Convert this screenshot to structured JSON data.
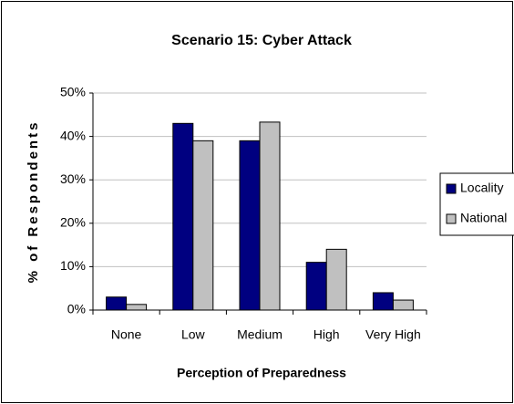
{
  "chart_data": {
    "type": "bar",
    "title": "Scenario 15: Cyber Attack",
    "x_label": "Perception of Preparedness",
    "y_label": "% of Respondents",
    "categories": [
      "None",
      "Low",
      "Medium",
      "High",
      "Very High"
    ],
    "series": [
      {
        "name": "Locality",
        "color": "#000080",
        "values": [
          3,
          43,
          39,
          11,
          4
        ]
      },
      {
        "name": "National",
        "color": "#c0c0c0",
        "values": [
          1.3,
          39,
          43.3,
          14,
          2.3
        ]
      }
    ],
    "ylim": [
      0,
      50
    ],
    "yticks": [
      {
        "value": 0,
        "label": "0%"
      },
      {
        "value": 10,
        "label": "10%"
      },
      {
        "value": 20,
        "label": "20%"
      },
      {
        "value": 30,
        "label": "30%"
      },
      {
        "value": 40,
        "label": "40%"
      },
      {
        "value": 50,
        "label": "50%"
      }
    ],
    "grid": true,
    "legend": "right"
  }
}
